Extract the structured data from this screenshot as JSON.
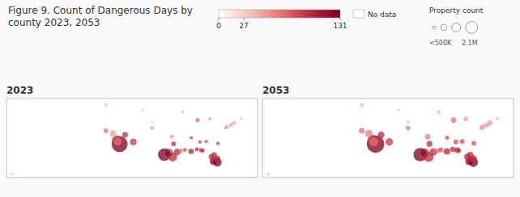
{
  "chart_data": {
    "type": "bubble",
    "title": "Figure 9. Count of Dangerous Days by\ncounty 2023, 2053",
    "xlim": [
      -160,
      -65
    ],
    "ylim": [
      20,
      50
    ],
    "tick_labels": false,
    "grid": false,
    "series": [
      {
        "name": "2023",
        "x": [
          -117.2,
          -118.2,
          -117.9,
          -119.7,
          -115.1,
          -112.0,
          -111.9,
          -104.9,
          -97.5,
          -96.8,
          -95.4,
          -98.5,
          -100.3,
          -97.1,
          -94.1,
          -90.2,
          -89.9,
          -86.8,
          -84.4,
          -81.7,
          -80.2,
          -81.4,
          -82.5,
          -80.25,
          -80.1,
          -87.7,
          -83.0,
          -77.0,
          -75.1,
          -73.9,
          -71.1,
          -76.6,
          -93.3,
          -104.9,
          -108.5,
          -122.4,
          -122.3,
          -157.8,
          -86.3,
          -88.0,
          -80.0,
          -92.5,
          -90.1,
          -85.7
        ],
        "values": [
          32.7,
          34.05,
          33.6,
          36.7,
          36.2,
          33.5,
          33.4,
          38.8,
          35.5,
          32.8,
          29.7,
          29.4,
          28.7,
          27.8,
          30.1,
          29.95,
          30.0,
          33.5,
          33.7,
          26.2,
          25.8,
          28.5,
          27.9,
          27.1,
          26.7,
          41.8,
          42.3,
          38.9,
          39.9,
          40.7,
          42.4,
          39.3,
          44.9,
          41.1,
          45.7,
          37.8,
          47.6,
          21.3,
          30.4,
          30.7,
          33.0,
          30.5,
          35.1,
          30.2
        ],
        "sizes": [
          320,
          130,
          80,
          50,
          40,
          55,
          30,
          18,
          22,
          28,
          55,
          80,
          200,
          100,
          22,
          35,
          20,
          18,
          16,
          70,
          90,
          45,
          38,
          50,
          30,
          22,
          14,
          16,
          18,
          20,
          10,
          16,
          14,
          9,
          7,
          28,
          18,
          10,
          25,
          20,
          16,
          20,
          16,
          18
        ],
        "colors": [
          "#7a0020",
          "#c8384a",
          "#e07070",
          "#e8a0a0",
          "#c0283c",
          "#c0283c",
          "#e07070",
          "#e8a0a0",
          "#e8a0a0",
          "#c0283c",
          "#c0283c",
          "#c0283c",
          "#7a0020",
          "#c0283c",
          "#e07070",
          "#c0283c",
          "#d05050",
          "#d05050",
          "#d05050",
          "#7a0020",
          "#7a0020",
          "#c0283c",
          "#c0283c",
          "#c0283c",
          "#c0283c",
          "#e07070",
          "#e8a0a0",
          "#e8a0a0",
          "#e8a0a0",
          "#e8a0a0",
          "#f0c0c0",
          "#e8a0a0",
          "#f0c0c0",
          "#f0c8c0",
          "#f0c8c0",
          "#e07070",
          "#f0c0c0",
          "#f0c0c0",
          "#c0283c",
          "#c0283c",
          "#d05050",
          "#d05050",
          "#d05050",
          "#c0283c"
        ]
      },
      {
        "name": "2053",
        "x": [
          -117.2,
          -118.2,
          -117.9,
          -119.7,
          -115.1,
          -112.0,
          -111.9,
          -104.9,
          -97.5,
          -96.8,
          -95.4,
          -98.5,
          -100.3,
          -97.1,
          -94.1,
          -90.2,
          -89.9,
          -86.8,
          -84.4,
          -81.7,
          -80.2,
          -81.4,
          -82.5,
          -80.25,
          -80.1,
          -87.7,
          -83.0,
          -77.0,
          -75.1,
          -73.9,
          -71.1,
          -76.6,
          -93.3,
          -104.9,
          -108.5,
          -122.4,
          -122.3,
          -157.8,
          -86.3,
          -88.0,
          -80.0,
          -92.5,
          -90.1,
          -85.7
        ],
        "values": [
          32.7,
          34.05,
          33.6,
          36.7,
          36.2,
          33.5,
          33.4,
          38.8,
          35.5,
          32.8,
          29.7,
          29.4,
          28.7,
          27.8,
          30.1,
          29.95,
          30.0,
          33.5,
          33.7,
          26.2,
          25.8,
          28.5,
          27.9,
          27.1,
          26.7,
          41.8,
          42.3,
          38.9,
          39.9,
          40.7,
          42.4,
          39.3,
          44.9,
          41.1,
          45.7,
          37.8,
          47.6,
          21.3,
          30.4,
          30.7,
          33.0,
          30.5,
          35.1,
          30.2
        ],
        "sizes": [
          380,
          160,
          100,
          70,
          60,
          70,
          40,
          28,
          38,
          45,
          70,
          90,
          230,
          120,
          35,
          50,
          28,
          32,
          30,
          80,
          110,
          60,
          50,
          65,
          40,
          38,
          28,
          30,
          32,
          36,
          20,
          28,
          22,
          16,
          12,
          42,
          28,
          15,
          40,
          35,
          28,
          30,
          22,
          25
        ],
        "colors": [
          "#7a0020",
          "#c8384a",
          "#e07070",
          "#e08080",
          "#c0283c",
          "#c0283c",
          "#e07070",
          "#e08080",
          "#e08080",
          "#c0283c",
          "#c0283c",
          "#c0283c",
          "#7a0020",
          "#c0283c",
          "#e07070",
          "#c0283c",
          "#d05050",
          "#d05050",
          "#d05050",
          "#7a0020",
          "#7a0020",
          "#c0283c",
          "#c0283c",
          "#c0283c",
          "#c0283c",
          "#e07070",
          "#e8a0a0",
          "#e8a0a0",
          "#e8a0a0",
          "#e8a0a0",
          "#f0c0c0",
          "#e8a0a0",
          "#f0c0c0",
          "#f0c8c0",
          "#f0c8c0",
          "#e07070",
          "#f0c0c0",
          "#f0c0c0",
          "#c0283c",
          "#c0283c",
          "#d05050",
          "#d05050",
          "#d05050",
          "#c0283c"
        ]
      }
    ],
    "colorbar": {
      "colors": [
        "#ffffff",
        "#f5c5b8",
        "#e87878",
        "#c0283c",
        "#7a0020"
      ],
      "range": [
        0,
        131
      ],
      "ticks": [
        0,
        27,
        131
      ],
      "nodata_label": "No data"
    },
    "size_legend": {
      "title": "Property count",
      "labels": [
        "<500K",
        "2.1M"
      ]
    }
  }
}
